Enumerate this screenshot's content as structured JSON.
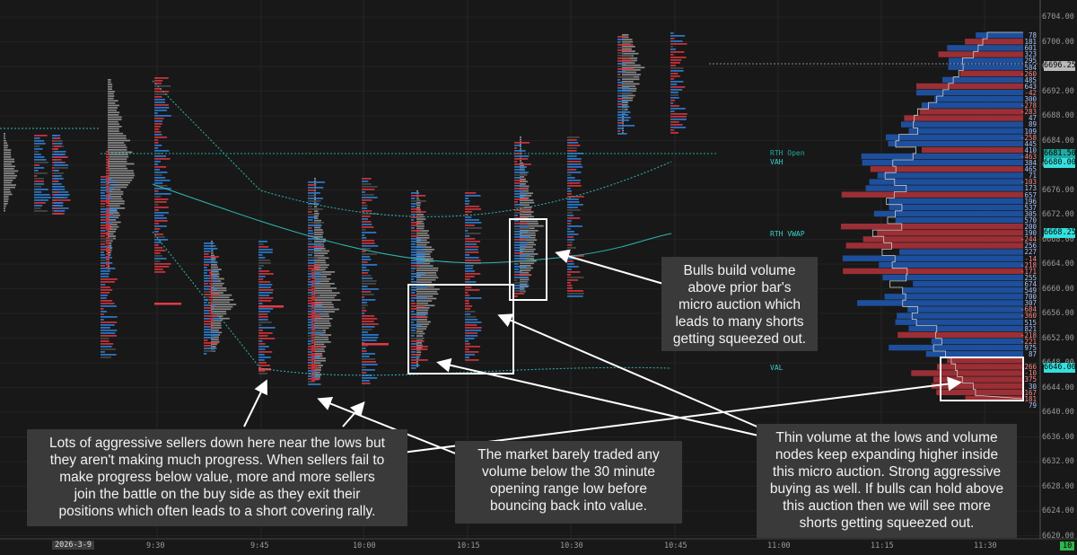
{
  "price_axis": {
    "labels": [
      "6704.00",
      "6700.00",
      "6696.00",
      "6692.00",
      "6688.00",
      "6684.00",
      "6680.00",
      "6676.00",
      "6672.00",
      "6668.00",
      "6664.00",
      "6660.00",
      "6656.00",
      "6652.00",
      "6648.00",
      "6644.00",
      "6640.00",
      "6636.00",
      "6632.00",
      "6628.00",
      "6624.00",
      "6620.00"
    ],
    "tags": [
      {
        "label": "6696.25",
        "color": "#b9b9b9"
      },
      {
        "label": "6681.50",
        "color": "#1fa9a0"
      },
      {
        "label": "6680.00",
        "color": "#34e0dd"
      },
      {
        "label": "6668.25",
        "color": "#34e0dd"
      },
      {
        "label": "6646.00",
        "color": "#34e0dd"
      }
    ]
  },
  "time_axis": {
    "date_label": "2026-3-9",
    "labels": [
      "9:30",
      "9:45",
      "10:00",
      "10:15",
      "10:30",
      "10:45",
      "11:00",
      "11:15",
      "11:30"
    ],
    "corner_label": "10"
  },
  "levels": {
    "rth_open": "RTH Open",
    "vah": "VAH",
    "vwap": "RTH VWAP",
    "val": "VAL"
  },
  "volume_profile_numbers": [
    {
      "v": "78",
      "c": "#a9c7ff"
    },
    {
      "v": "181",
      "c": "#a9c7ff"
    },
    {
      "v": "601",
      "c": "#a9c7ff"
    },
    {
      "v": "323",
      "c": "#a9c7ff"
    },
    {
      "v": "295",
      "c": "#a9c7ff"
    },
    {
      "v": "584",
      "c": "#a9c7ff"
    },
    {
      "v": "-260",
      "c": "#ff8a8a"
    },
    {
      "v": "485",
      "c": "#a9c7ff"
    },
    {
      "v": "643",
      "c": "#a9c7ff"
    },
    {
      "v": "-42",
      "c": "#ff8a8a"
    },
    {
      "v": "300",
      "c": "#a9c7ff"
    },
    {
      "v": "-278",
      "c": "#ff8a8a"
    },
    {
      "v": "-283",
      "c": "#ff8a8a"
    },
    {
      "v": "47",
      "c": "#a9c7ff"
    },
    {
      "v": "89",
      "c": "#a9c7ff"
    },
    {
      "v": "109",
      "c": "#a9c7ff"
    },
    {
      "v": "-258",
      "c": "#ff8a8a"
    },
    {
      "v": "445",
      "c": "#a9c7ff"
    },
    {
      "v": "410",
      "c": "#a9c7ff"
    },
    {
      "v": "-463",
      "c": "#ff8a8a"
    },
    {
      "v": "384",
      "c": "#a9c7ff"
    },
    {
      "v": "465",
      "c": "#a9c7ff"
    },
    {
      "v": "71",
      "c": "#a9c7ff"
    },
    {
      "v": "-103",
      "c": "#ff8a8a"
    },
    {
      "v": "173",
      "c": "#a9c7ff"
    },
    {
      "v": "657",
      "c": "#a9c7ff"
    },
    {
      "v": "196",
      "c": "#a9c7ff"
    },
    {
      "v": "537",
      "c": "#a9c7ff"
    },
    {
      "v": "305",
      "c": "#a9c7ff"
    },
    {
      "v": "570",
      "c": "#a9c7ff"
    },
    {
      "v": "200",
      "c": "#a9c7ff"
    },
    {
      "v": "190",
      "c": "#a9c7ff"
    },
    {
      "v": "-244",
      "c": "#ff8a8a"
    },
    {
      "v": "256",
      "c": "#a9c7ff"
    },
    {
      "v": "227",
      "c": "#a9c7ff"
    },
    {
      "v": "-14",
      "c": "#ff8a8a"
    },
    {
      "v": "-218",
      "c": "#ff8a8a"
    },
    {
      "v": "-171",
      "c": "#ff8a8a"
    },
    {
      "v": "255",
      "c": "#a9c7ff"
    },
    {
      "v": "674",
      "c": "#a9c7ff"
    },
    {
      "v": "549",
      "c": "#a9c7ff"
    },
    {
      "v": "700",
      "c": "#a9c7ff"
    },
    {
      "v": "307",
      "c": "#a9c7ff"
    },
    {
      "v": "-684",
      "c": "#ff8a8a"
    },
    {
      "v": "-360",
      "c": "#ff8a8a"
    },
    {
      "v": "515",
      "c": "#a9c7ff"
    },
    {
      "v": "821",
      "c": "#a9c7ff"
    },
    {
      "v": "-218",
      "c": "#ff8a8a"
    },
    {
      "v": "-221",
      "c": "#ff8a8a"
    },
    {
      "v": "975",
      "c": "#a9c7ff"
    },
    {
      "v": "87",
      "c": "#a9c7ff"
    },
    {
      "v": "",
      "c": "#a9c7ff"
    },
    {
      "v": "-266",
      "c": "#ff8a8a"
    },
    {
      "v": "-10",
      "c": "#ff8a8a"
    },
    {
      "v": "-375",
      "c": "#ff8a8a"
    },
    {
      "v": "30",
      "c": "#a9c7ff"
    },
    {
      "v": "-167",
      "c": "#ff8a8a"
    },
    {
      "v": "-181",
      "c": "#ff8a8a"
    },
    {
      "v": "79",
      "c": "#a9c7ff"
    }
  ],
  "notes": {
    "bulls": "Bulls build volume\nabove prior bar's\nmicro auction which\nleads to many shorts\ngetting squeezed out.",
    "sellers": "Lots of aggressive sellers down here near the lows but\nthey aren't making much progress. When sellers fail to\nmake progress below value, more and more sellers\njoin the battle on the buy side as they exit their\npositions which often leads to a short covering rally.",
    "market": "The market barely traded any\nvolume below the 30 minute\nopening range low before\nbouncing back into value.",
    "thin": "Thin volume at the lows and volume\nnodes keep expanding higher inside\nthis micro auction. Strong aggressive\nbuying as well. If bulls can hold above\nthis auction then we will see more\nshorts getting squeezed out."
  },
  "colors": {
    "background": "#181818",
    "profile_gray": "#8a8a8a",
    "delta_blue": "#2e7fd6",
    "delta_red": "#d6363f",
    "vp_blue": "#1e4f9c",
    "vp_red": "#9b2f35",
    "vwap": "#2fb8b3",
    "highlight": "#ffffff"
  }
}
